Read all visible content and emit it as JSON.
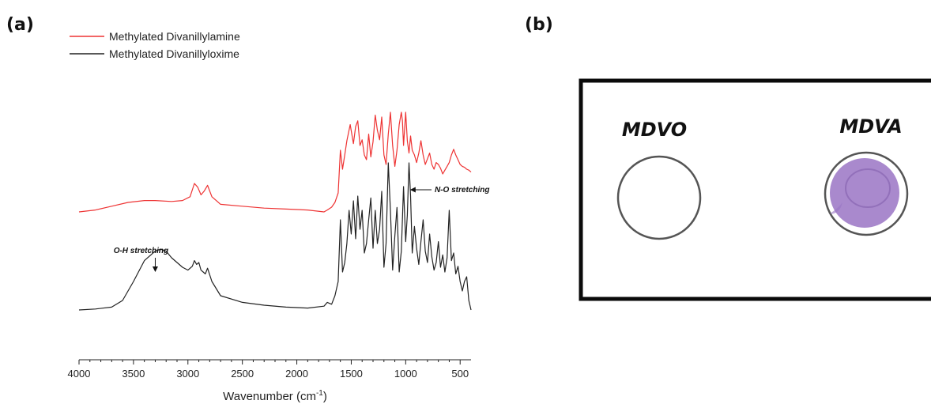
{
  "panels": {
    "a": "(a)",
    "b": "(b)"
  },
  "chart_data": {
    "type": "line",
    "title": "",
    "xlabel": "Wavenumber (cm-1)",
    "xlabel_main": "Wavenumber (cm",
    "xlabel_sup": "-1",
    "xlabel_close": ")",
    "ylabel": "",
    "xlim": [
      4000,
      400
    ],
    "x_reversed": true,
    "y_axis_shown": false,
    "grid": false,
    "legend_placement": "top-left",
    "xticks": [
      4000,
      3500,
      3000,
      2500,
      2000,
      1500,
      1000,
      500
    ],
    "annotations": [
      {
        "text": "O-H stretching",
        "x": 3300,
        "series": "Methylated Divanillyloxime"
      },
      {
        "text": "N-O stretching",
        "x": 960,
        "series": "Methylated Divanillyloxime"
      }
    ],
    "series": [
      {
        "name": "Methylated Divanillylamine",
        "color": "#ee3333",
        "x": [
          4000,
          3850,
          3700,
          3550,
          3400,
          3300,
          3150,
          3050,
          2980,
          2940,
          2910,
          2880,
          2850,
          2820,
          2780,
          2700,
          2500,
          2300,
          2100,
          1900,
          1750,
          1720,
          1680,
          1650,
          1620,
          1600,
          1580,
          1560,
          1540,
          1510,
          1480,
          1460,
          1440,
          1420,
          1400,
          1380,
          1360,
          1340,
          1320,
          1300,
          1280,
          1260,
          1240,
          1220,
          1200,
          1180,
          1160,
          1140,
          1120,
          1100,
          1080,
          1060,
          1040,
          1030,
          1020,
          1000,
          985,
          970,
          955,
          940,
          920,
          900,
          880,
          860,
          840,
          820,
          800,
          780,
          760,
          740,
          720,
          700,
          680,
          660,
          640,
          620,
          600,
          580,
          560,
          540,
          520,
          500,
          480,
          460,
          440,
          420,
          400
        ],
        "y": [
          0.0,
          0.02,
          0.06,
          0.1,
          0.12,
          0.12,
          0.11,
          0.12,
          0.16,
          0.3,
          0.26,
          0.18,
          0.22,
          0.28,
          0.16,
          0.08,
          0.06,
          0.04,
          0.03,
          0.02,
          0.0,
          0.02,
          0.05,
          0.1,
          0.2,
          0.65,
          0.45,
          0.6,
          0.75,
          0.92,
          0.72,
          0.9,
          0.96,
          0.7,
          0.76,
          0.6,
          0.55,
          0.82,
          0.58,
          0.74,
          1.02,
          0.86,
          0.76,
          1.0,
          0.6,
          0.5,
          0.82,
          1.05,
          0.7,
          0.48,
          0.65,
          0.92,
          1.05,
          0.96,
          0.7,
          1.05,
          0.75,
          0.62,
          0.8,
          0.65,
          0.6,
          0.52,
          0.62,
          0.75,
          0.6,
          0.5,
          0.56,
          0.62,
          0.5,
          0.45,
          0.52,
          0.5,
          0.46,
          0.4,
          0.44,
          0.48,
          0.52,
          0.6,
          0.66,
          0.6,
          0.55,
          0.5,
          0.48,
          0.47,
          0.45,
          0.44,
          0.42
        ]
      },
      {
        "name": "Methylated Divanillyloxime",
        "color": "#222222",
        "x": [
          4000,
          3850,
          3700,
          3600,
          3500,
          3400,
          3300,
          3250,
          3200,
          3150,
          3100,
          3050,
          3000,
          2960,
          2940,
          2920,
          2900,
          2880,
          2860,
          2840,
          2820,
          2780,
          2700,
          2500,
          2300,
          2100,
          1900,
          1750,
          1720,
          1680,
          1650,
          1620,
          1600,
          1580,
          1560,
          1540,
          1520,
          1500,
          1480,
          1460,
          1440,
          1420,
          1400,
          1380,
          1360,
          1340,
          1320,
          1300,
          1280,
          1260,
          1240,
          1220,
          1200,
          1180,
          1160,
          1140,
          1120,
          1100,
          1080,
          1060,
          1040,
          1020,
          1000,
          985,
          970,
          955,
          940,
          920,
          900,
          880,
          860,
          840,
          820,
          800,
          780,
          760,
          740,
          720,
          700,
          680,
          660,
          640,
          620,
          600,
          580,
          560,
          540,
          520,
          500,
          480,
          460,
          440,
          420,
          400
        ],
        "y": [
          0.0,
          0.01,
          0.03,
          0.1,
          0.3,
          0.52,
          0.62,
          0.64,
          0.62,
          0.55,
          0.5,
          0.45,
          0.42,
          0.46,
          0.52,
          0.48,
          0.5,
          0.42,
          0.4,
          0.38,
          0.44,
          0.3,
          0.15,
          0.08,
          0.05,
          0.03,
          0.02,
          0.04,
          0.08,
          0.06,
          0.15,
          0.3,
          0.95,
          0.4,
          0.5,
          0.7,
          1.05,
          0.8,
          1.15,
          0.75,
          1.2,
          0.85,
          1.05,
          0.6,
          0.7,
          0.95,
          1.18,
          0.65,
          1.05,
          0.7,
          0.85,
          1.25,
          0.45,
          0.7,
          1.55,
          1.05,
          0.42,
          0.78,
          1.08,
          0.4,
          0.62,
          1.3,
          0.72,
          1.0,
          1.55,
          1.2,
          0.6,
          0.88,
          0.65,
          0.48,
          0.72,
          0.95,
          0.62,
          0.5,
          0.8,
          0.56,
          0.42,
          0.5,
          0.72,
          0.45,
          0.58,
          0.4,
          0.55,
          1.05,
          0.52,
          0.6,
          0.38,
          0.46,
          0.3,
          0.2,
          0.3,
          0.35,
          0.1,
          0.0
        ]
      }
    ]
  },
  "photo": {
    "spots": [
      {
        "label": "MDVO",
        "stained": false
      },
      {
        "label": "MDVA",
        "stained": true
      }
    ],
    "colors": {
      "stain": "#9a74c4",
      "stain_dark": "#7b57a8",
      "ring": "#555555"
    }
  }
}
